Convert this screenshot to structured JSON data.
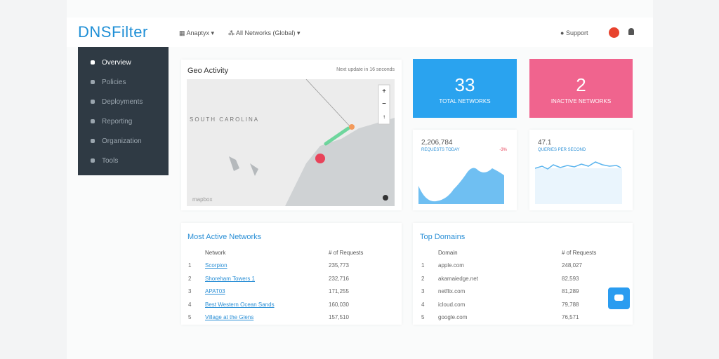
{
  "header": {
    "logo": "DNSFilter",
    "organization": "Anaptyx",
    "network_filter": "All Networks (Global)",
    "support": "Support"
  },
  "sidebar": [
    "Overview",
    "Policies",
    "Deployments",
    "Reporting",
    "Organization",
    "Tools"
  ],
  "geo": {
    "title": "Geo Activity",
    "update": "Next update in 16 seconds",
    "region": "SOUTH CAROLINA",
    "attribution": "mapbox"
  },
  "stats": [
    {
      "value": "33",
      "label": "TOTAL NETWORKS"
    },
    {
      "value": "2",
      "label": "INACTIVE NETWORKS"
    },
    {
      "value": "2,206,784",
      "label": "REQUESTS TODAY",
      "change": "-3%"
    },
    {
      "value": "47.1",
      "label": "QUERIES PER SECOND"
    }
  ],
  "networks": {
    "title": "Most Active Networks",
    "columns": [
      "Network",
      "# of Requests"
    ],
    "rows": [
      [
        "1",
        "Scorpion",
        "235,773"
      ],
      [
        "2",
        "Shoreham Towers 1",
        "232,716"
      ],
      [
        "3",
        "APAT03",
        "171,255"
      ],
      [
        "4",
        "Best Western Ocean Sands",
        "160,030"
      ],
      [
        "5",
        "Village at the Glens",
        "157,510"
      ]
    ]
  },
  "domains": {
    "title": "Top Domains",
    "columns": [
      "Domain",
      "# of Requests"
    ],
    "rows": [
      [
        "1",
        "apple.com",
        "248,027"
      ],
      [
        "2",
        "akamaiedge.net",
        "82,593"
      ],
      [
        "3",
        "netflix.com",
        "81,289"
      ],
      [
        "4",
        "icloud.com",
        "79,788"
      ],
      [
        "5",
        "google.com",
        "76,571"
      ]
    ]
  }
}
